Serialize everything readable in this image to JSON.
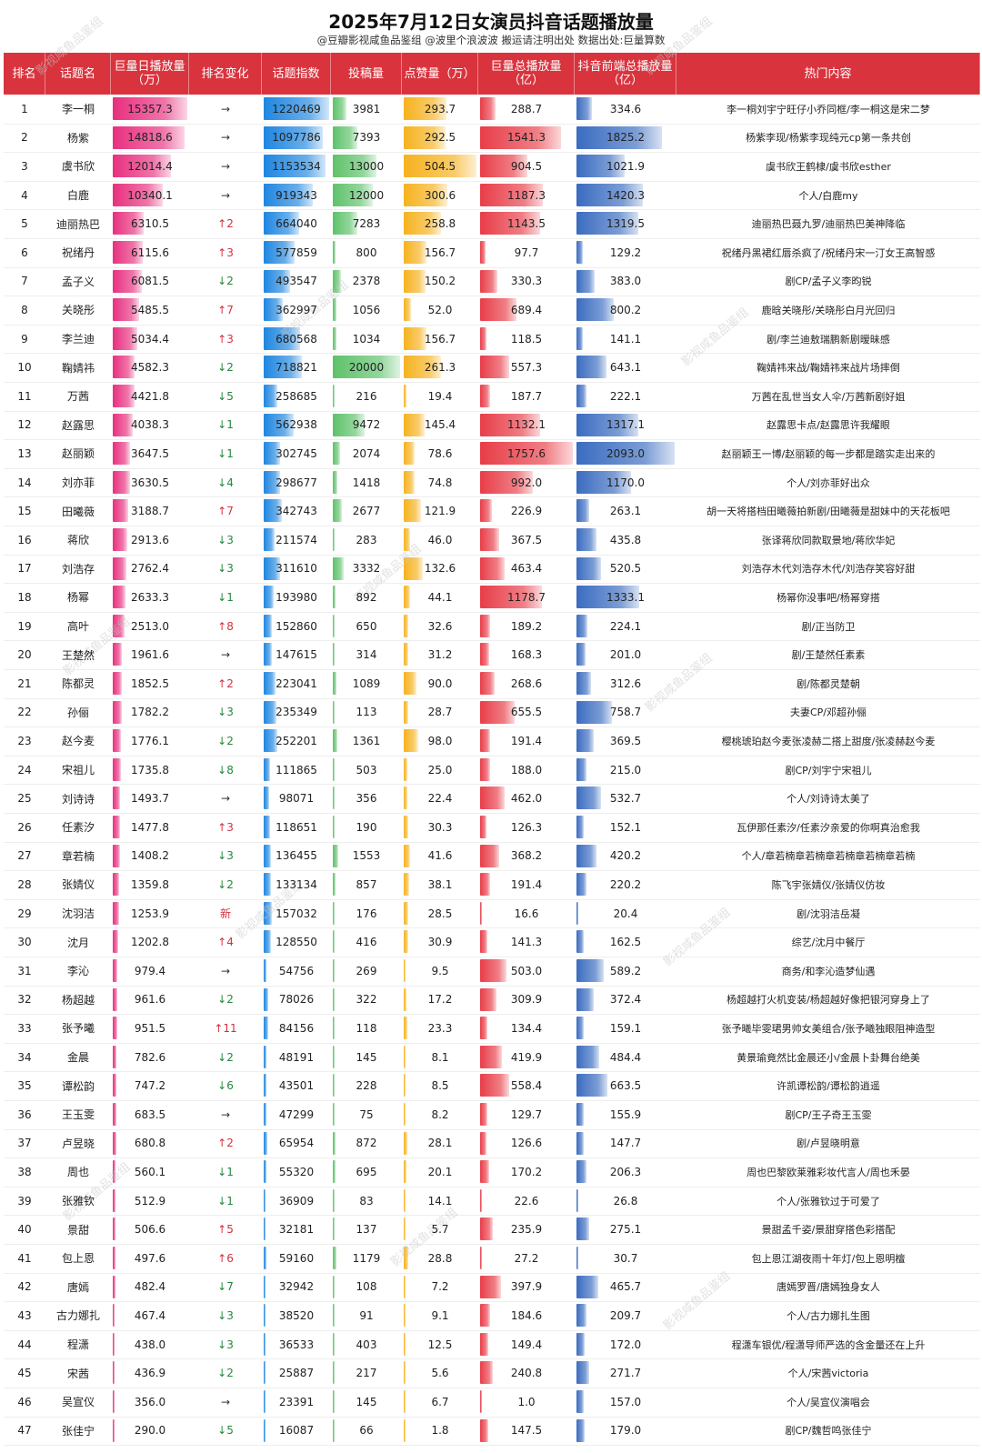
{
  "title": "2025年7月12日女演员抖音话题播放量",
  "subtitle": "@豆瓣影视咸鱼品鉴组 @波里个浪波波 搬运请注明出处 数据出处:巨量算数",
  "watermark": "影视咸鱼品鉴组",
  "columns": [
    "排名",
    "话题名",
    "巨量日播放量（万）",
    "排名变化",
    "话题指数",
    "投稿量",
    "点赞量（万）",
    "巨量总播放量（亿）",
    "抖音前端总播放量（亿）",
    "热门内容"
  ],
  "colors": {
    "header": "#d9343e",
    "daily": "#e8307f",
    "index": "#1f86e0",
    "posts": "#5ec26a",
    "likes": "#f6b21f",
    "total": "#e83d48",
    "front": "#3a6cc0"
  },
  "chart_data": {
    "type": "table",
    "title": "2025年7月12日女演员抖音话题播放量",
    "rows": [
      {
        "rank": "1",
        "name": "李一桐",
        "daily": 15357.3,
        "change": "→",
        "index": 1220469,
        "posts": 3981,
        "likes": 293.7,
        "total": 288.7,
        "front": 334.6,
        "hot": "李一桐刘宇宁旺仔小乔同框/李一桐这是宋二梦"
      },
      {
        "rank": "2",
        "name": "杨紫",
        "daily": 14818.6,
        "change": "→",
        "index": 1097786,
        "posts": 7393,
        "likes": 292.5,
        "total": 1541.3,
        "front": 1825.2,
        "hot": "杨紫李现/杨紫李现纯元cp第一条共创"
      },
      {
        "rank": "3",
        "name": "虞书欣",
        "daily": 12014.4,
        "change": "→",
        "index": 1153534,
        "posts": 13000,
        "likes": 504.5,
        "total": 904.5,
        "front": 1021.9,
        "hot": "虞书欣王鹤棣/虞书欣esther"
      },
      {
        "rank": "4",
        "name": "白鹿",
        "daily": 10340.1,
        "change": "→",
        "index": 919343,
        "posts": 12000,
        "likes": 300.6,
        "total": 1187.3,
        "front": 1420.3,
        "hot": "个人/白鹿my"
      },
      {
        "rank": "5",
        "name": "迪丽热巴",
        "daily": 6310.5,
        "change": "↑2",
        "index": 664040,
        "posts": 7283,
        "likes": 258.8,
        "total": 1143.5,
        "front": 1319.5,
        "hot": "迪丽热巴聂九罗/迪丽热巴美神降临"
      },
      {
        "rank": "6",
        "name": "祝绪丹",
        "daily": 6115.6,
        "change": "↑3",
        "index": 577859,
        "posts": 800,
        "likes": 156.7,
        "total": 97.7,
        "front": 129.2,
        "hot": "祝绪丹黑裙红唇杀疯了/祝绪丹宋一汀女王高智感"
      },
      {
        "rank": "7",
        "name": "孟子义",
        "daily": 6081.5,
        "change": "↓2",
        "index": 493547,
        "posts": 2378,
        "likes": 150.2,
        "total": 330.3,
        "front": 383.0,
        "hot": "剧CP/孟子义李昀锐"
      },
      {
        "rank": "8",
        "name": "关晓彤",
        "daily": 5485.5,
        "change": "↑7",
        "index": 362997,
        "posts": 1056,
        "likes": 52.0,
        "total": 689.4,
        "front": 800.2,
        "hot": "鹿晗关晓彤/关晓彤白月光回归"
      },
      {
        "rank": "9",
        "name": "李兰迪",
        "daily": 5034.4,
        "change": "↑3",
        "index": 680568,
        "posts": 1034,
        "likes": 156.7,
        "total": 118.5,
        "front": 141.1,
        "hot": "剧/李兰迪敖瑞鹏新剧暧昧感"
      },
      {
        "rank": "10",
        "name": "鞠婧祎",
        "daily": 4582.3,
        "change": "↓2",
        "index": 718821,
        "posts": 20000,
        "likes": 261.3,
        "total": 557.3,
        "front": 643.1,
        "hot": "鞠婧祎来战/鞠婧祎来战片场摔倒"
      },
      {
        "rank": "11",
        "name": "万茜",
        "daily": 4421.8,
        "change": "↓5",
        "index": 258685,
        "posts": 216,
        "likes": 19.4,
        "total": 187.7,
        "front": 222.1,
        "hot": "万茜在乱世当女人伞/万茜新剧好姐"
      },
      {
        "rank": "12",
        "name": "赵露思",
        "daily": 4038.3,
        "change": "↓1",
        "index": 562938,
        "posts": 9472,
        "likes": 145.4,
        "total": 1132.1,
        "front": 1317.1,
        "hot": "赵露思卡点/赵露思许我耀眼"
      },
      {
        "rank": "13",
        "name": "赵丽颖",
        "daily": 3647.5,
        "change": "↓1",
        "index": 302745,
        "posts": 2074,
        "likes": 78.6,
        "total": 1757.6,
        "front": 2093.0,
        "hot": "赵丽颖王一博/赵丽颖的每一步都是踏实走出来的"
      },
      {
        "rank": "14",
        "name": "刘亦菲",
        "daily": 3630.5,
        "change": "↓4",
        "index": 298677,
        "posts": 1418,
        "likes": 74.8,
        "total": 992.0,
        "front": 1170.0,
        "hot": "个人/刘亦菲好出众"
      },
      {
        "rank": "15",
        "name": "田曦薇",
        "daily": 3188.7,
        "change": "↑7",
        "index": 342743,
        "posts": 2677,
        "likes": 121.9,
        "total": 226.9,
        "front": 263.1,
        "hot": "胡一天将搭档田曦薇拍新剧/田曦薇是甜妹中的天花板吧"
      },
      {
        "rank": "16",
        "name": "蒋欣",
        "daily": 2913.6,
        "change": "↓3",
        "index": 211574,
        "posts": 283,
        "likes": 46.0,
        "total": 367.5,
        "front": 435.8,
        "hot": "张译蒋欣同款取景地/蒋欣华妃"
      },
      {
        "rank": "17",
        "name": "刘浩存",
        "daily": 2762.4,
        "change": "↓3",
        "index": 311610,
        "posts": 3332,
        "likes": 132.6,
        "total": 463.4,
        "front": 520.5,
        "hot": "刘浩存木代刘浩存木代/刘浩存笑容好甜"
      },
      {
        "rank": "18",
        "name": "杨幂",
        "daily": 2633.3,
        "change": "↓1",
        "index": 193980,
        "posts": 892,
        "likes": 44.1,
        "total": 1178.7,
        "front": 1333.1,
        "hot": "杨幂你没事吧/杨幂穿搭"
      },
      {
        "rank": "19",
        "name": "高叶",
        "daily": 2513.0,
        "change": "↑8",
        "index": 152860,
        "posts": 650,
        "likes": 32.6,
        "total": 189.2,
        "front": 224.1,
        "hot": "剧/正当防卫"
      },
      {
        "rank": "20",
        "name": "王楚然",
        "daily": 1961.6,
        "change": "→",
        "index": 147615,
        "posts": 314,
        "likes": 31.2,
        "total": 168.3,
        "front": 201.0,
        "hot": "剧/王楚然任素素"
      },
      {
        "rank": "21",
        "name": "陈都灵",
        "daily": 1852.5,
        "change": "↑2",
        "index": 223041,
        "posts": 1089,
        "likes": 90.0,
        "total": 268.6,
        "front": 312.6,
        "hot": "剧/陈都灵楚朝"
      },
      {
        "rank": "22",
        "name": "孙俪",
        "daily": 1782.2,
        "change": "↓3",
        "index": 235349,
        "posts": 113,
        "likes": 28.7,
        "total": 655.5,
        "front": 758.7,
        "hot": "夫妻CP/邓超孙俪"
      },
      {
        "rank": "23",
        "name": "赵今麦",
        "daily": 1776.1,
        "change": "↓2",
        "index": 252201,
        "posts": 1361,
        "likes": 98.0,
        "total": 191.4,
        "front": 369.5,
        "hot": "樱桃琥珀赵今麦张凌赫二搭上甜度/张凌赫赵今麦"
      },
      {
        "rank": "24",
        "name": "宋祖儿",
        "daily": 1735.8,
        "change": "↓8",
        "index": 111865,
        "posts": 503,
        "likes": 25.0,
        "total": 188.0,
        "front": 215.0,
        "hot": "剧CP/刘宇宁宋祖儿"
      },
      {
        "rank": "25",
        "name": "刘诗诗",
        "daily": 1493.7,
        "change": "→",
        "index": 98071,
        "posts": 356,
        "likes": 22.4,
        "total": 462.0,
        "front": 532.7,
        "hot": "个人/刘诗诗太美了"
      },
      {
        "rank": "26",
        "name": "任素汐",
        "daily": 1477.8,
        "change": "↑3",
        "index": 118651,
        "posts": 190,
        "likes": 30.3,
        "total": 126.3,
        "front": 152.1,
        "hot": "瓦伊那任素汐/任素汐亲爱的你啊真治愈我"
      },
      {
        "rank": "27",
        "name": "章若楠",
        "daily": 1408.2,
        "change": "↓3",
        "index": 136455,
        "posts": 1553,
        "likes": 41.6,
        "total": 368.2,
        "front": 420.2,
        "hot": "个人/章若楠章若楠章若楠章若楠章若楠"
      },
      {
        "rank": "28",
        "name": "张婧仪",
        "daily": 1359.8,
        "change": "↓2",
        "index": 133134,
        "posts": 857,
        "likes": 38.1,
        "total": 191.4,
        "front": 220.2,
        "hot": "陈飞宇张婧仪/张婧仪仿妆"
      },
      {
        "rank": "29",
        "name": "沈羽洁",
        "daily": 1253.9,
        "change": "新",
        "index": 157032,
        "posts": 176,
        "likes": 28.5,
        "total": 16.6,
        "front": 20.4,
        "hot": "剧/沈羽洁岳凝"
      },
      {
        "rank": "30",
        "name": "沈月",
        "daily": 1202.8,
        "change": "↑4",
        "index": 128550,
        "posts": 416,
        "likes": 30.9,
        "total": 141.3,
        "front": 162.5,
        "hot": "综艺/沈月中餐厅"
      },
      {
        "rank": "31",
        "name": "李沁",
        "daily": 979.4,
        "change": "→",
        "index": 54756,
        "posts": 269,
        "likes": 9.5,
        "total": 503.0,
        "front": 589.2,
        "hot": "商务/和李沁造梦仙遇"
      },
      {
        "rank": "32",
        "name": "杨超越",
        "daily": 961.6,
        "change": "↓2",
        "index": 78026,
        "posts": 322,
        "likes": 17.2,
        "total": 309.9,
        "front": 372.4,
        "hot": "杨超越打火机变装/杨超越好像把银河穿身上了"
      },
      {
        "rank": "33",
        "name": "张予曦",
        "daily": 951.5,
        "change": "↑11",
        "index": 84156,
        "posts": 118,
        "likes": 23.3,
        "total": 134.4,
        "front": 159.1,
        "hot": "张予曦毕雯珺男帅女美组合/张予曦独眼阻神造型"
      },
      {
        "rank": "34",
        "name": "金晨",
        "daily": 782.6,
        "change": "↓2",
        "index": 48191,
        "posts": 145,
        "likes": 8.1,
        "total": 419.9,
        "front": 484.4,
        "hot": "黄景瑜竟然比金晨还小/金晨卜卦舞台绝美"
      },
      {
        "rank": "35",
        "name": "谭松韵",
        "daily": 747.2,
        "change": "↓6",
        "index": 43501,
        "posts": 228,
        "likes": 8.5,
        "total": 558.4,
        "front": 663.5,
        "hot": "许凯谭松韵/谭松韵逍遥"
      },
      {
        "rank": "36",
        "name": "王玉雯",
        "daily": 683.5,
        "change": "→",
        "index": 47299,
        "posts": 75,
        "likes": 8.2,
        "total": 129.7,
        "front": 155.9,
        "hot": "剧CP/王子奇王玉雯"
      },
      {
        "rank": "37",
        "name": "卢昱晓",
        "daily": 680.8,
        "change": "↑2",
        "index": 65954,
        "posts": 872,
        "likes": 28.1,
        "total": 126.6,
        "front": 147.7,
        "hot": "剧/卢昱晓明意"
      },
      {
        "rank": "38",
        "name": "周也",
        "daily": 560.1,
        "change": "↓1",
        "index": 55320,
        "posts": 695,
        "likes": 20.1,
        "total": 170.2,
        "front": 206.3,
        "hot": "周也巴黎欧莱雅彩妆代言人/周也禾晏"
      },
      {
        "rank": "39",
        "name": "张雅钦",
        "daily": 512.9,
        "change": "↓1",
        "index": 36909,
        "posts": 83,
        "likes": 14.1,
        "total": 22.6,
        "front": 26.8,
        "hot": "个人/张雅钦过于可爱了"
      },
      {
        "rank": "40",
        "name": "景甜",
        "daily": 506.6,
        "change": "↑5",
        "index": 32181,
        "posts": 137,
        "likes": 5.7,
        "total": 235.9,
        "front": 275.1,
        "hot": "景甜孟千姿/景甜穿搭色彩搭配"
      },
      {
        "rank": "41",
        "name": "包上恩",
        "daily": 497.6,
        "change": "↑6",
        "index": 59160,
        "posts": 1179,
        "likes": 28.8,
        "total": 27.2,
        "front": 30.7,
        "hot": "包上恩江湖夜雨十年灯/包上恩明檀"
      },
      {
        "rank": "42",
        "name": "唐嫣",
        "daily": 482.4,
        "change": "↓7",
        "index": 32942,
        "posts": 108,
        "likes": 7.2,
        "total": 397.9,
        "front": 465.7,
        "hot": "唐嫣罗晋/唐嫣独身女人"
      },
      {
        "rank": "43",
        "name": "古力娜扎",
        "daily": 467.4,
        "change": "↓3",
        "index": 38520,
        "posts": 91,
        "likes": 9.1,
        "total": 184.6,
        "front": 209.7,
        "hot": "个人/古力娜扎生图"
      },
      {
        "rank": "44",
        "name": "程潇",
        "daily": 438.0,
        "change": "↓3",
        "index": 36533,
        "posts": 403,
        "likes": 12.5,
        "total": 149.4,
        "front": 172.0,
        "hot": "程潇车银优/程潇导师严选的含金量还在上升"
      },
      {
        "rank": "45",
        "name": "宋茜",
        "daily": 436.9,
        "change": "↓2",
        "index": 25887,
        "posts": 217,
        "likes": 5.6,
        "total": 240.8,
        "front": 271.7,
        "hot": "个人/宋茜victoria"
      },
      {
        "rank": "46",
        "name": "吴宣仪",
        "daily": 356.0,
        "change": "→",
        "index": 23391,
        "posts": 145,
        "likes": 6.7,
        "total": 1.0,
        "front": 157.0,
        "hot": "个人/吴宣仪演唱会"
      },
      {
        "rank": "47",
        "name": "张佳宁",
        "daily": 290.0,
        "change": "↓5",
        "index": 16087,
        "posts": 66,
        "likes": 1.8,
        "total": 147.5,
        "front": 179.0,
        "hot": "剧CP/魏哲鸣张佳宁"
      }
    ]
  }
}
